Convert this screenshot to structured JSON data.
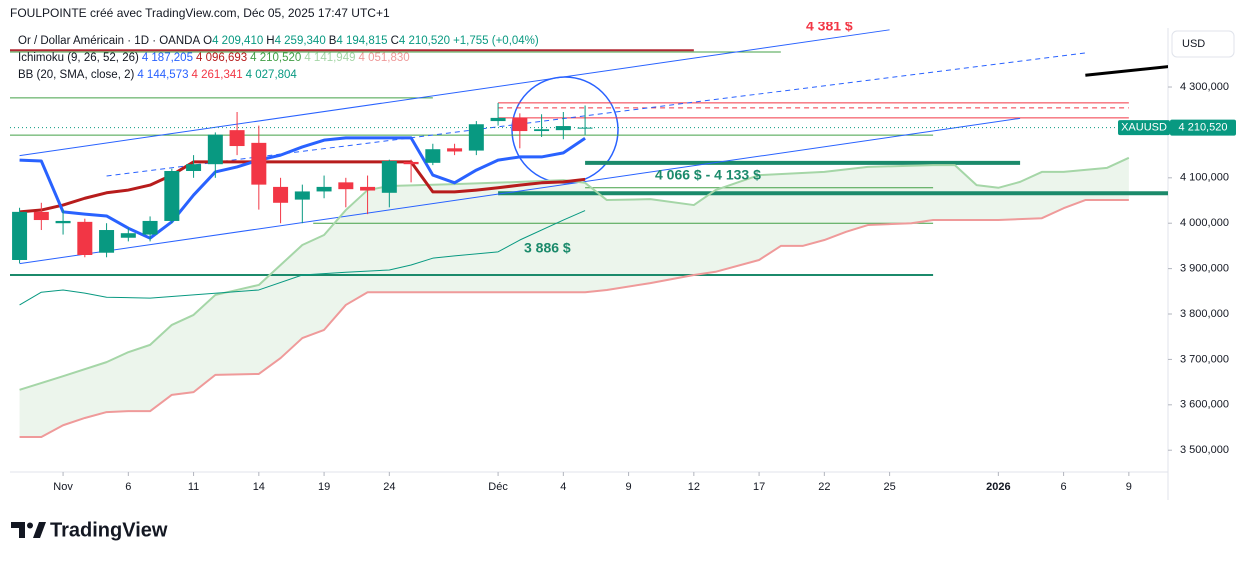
{
  "chart_data": {
    "type": "candlestick",
    "title": "FOULPOINTE créé avec TradingView.com, Déc 05, 2025 17:47 UTC+1",
    "symbol": "Or / Dollar Américain · 1D · OANDA",
    "ohlc_legend": [
      {
        "key": "O",
        "text": "4 209,410"
      },
      {
        "key": "H",
        "text": "4 259,340"
      },
      {
        "key": "B",
        "text": "4 194,815"
      },
      {
        "key": "C",
        "text": "4 210,520"
      }
    ],
    "change": "+1,755 (+0,04%)",
    "indicators": [
      {
        "name": "Ichimoku (9, 26, 52, 26)",
        "values": [
          {
            "text": "4 187,205",
            "color": "#2962ff"
          },
          {
            "text": "4 096,693",
            "color": "#b71c1c"
          },
          {
            "text": "4 210,520",
            "color": "#43a047"
          },
          {
            "text": "4 141,949",
            "color": "#a5d6a7"
          },
          {
            "text": "4 051,830",
            "color": "#ef9a9a"
          }
        ]
      },
      {
        "name": "BB (20, SMA, close, 2)",
        "values": [
          {
            "text": "4 144,573",
            "color": "#2962ff"
          },
          {
            "text": "4 261,341",
            "color": "#f23645"
          },
          {
            "text": "4 027,804",
            "color": "#089981"
          }
        ]
      }
    ],
    "x": [
      -2,
      -1,
      0,
      1,
      2,
      3,
      4,
      5,
      6,
      7,
      8,
      9,
      10,
      11,
      12,
      13,
      14,
      15,
      16,
      17,
      18,
      19,
      20,
      21,
      22,
      23,
      24
    ],
    "open": [
      3919,
      4025,
      4000,
      4003,
      3935,
      3968,
      3975,
      4005,
      4115,
      4130,
      4205,
      4177,
      4080,
      4052,
      4070,
      4090,
      4080,
      4067,
      4135,
      4133,
      4165,
      4160,
      4225,
      4232,
      4203,
      4205,
      4209.41
    ],
    "high": [
      4034,
      4045,
      4030,
      4010,
      4000,
      3990,
      4015,
      4120,
      4150,
      4200,
      4245,
      4215,
      4100,
      4085,
      4105,
      4100,
      4105,
      4140,
      4140,
      4175,
      4175,
      4225,
      4265,
      4242,
      4240,
      4245,
      4259.34
    ],
    "low": [
      3912,
      3985,
      3975,
      3925,
      3925,
      3960,
      3960,
      4000,
      4100,
      4100,
      4150,
      4030,
      4000,
      4000,
      4055,
      4035,
      4020,
      4035,
      4090,
      4128,
      4150,
      4150,
      4215,
      4165,
      4190,
      4185,
      4194.815
    ],
    "close": [
      4025,
      4007,
      4005,
      3930,
      3985,
      3978,
      4005,
      4115,
      4130,
      4195,
      4170,
      4085,
      4045,
      4070,
      4080,
      4075,
      4072,
      4137,
      4130,
      4163,
      4158,
      4218,
      4232,
      4203,
      4207,
      4214,
      4210.52
    ],
    "up_color": "#089981",
    "down_color": "#f23645",
    "series": [
      {
        "color": "#a5d6a7",
        "width": 2,
        "x": [
          -2,
          0,
          2,
          3,
          4,
          5,
          6,
          7,
          8,
          9,
          10,
          11,
          12,
          13,
          14,
          15,
          18,
          21,
          23,
          24,
          25,
          27,
          29,
          30,
          32,
          35,
          37,
          40,
          41,
          42,
          43,
          44,
          45,
          46,
          48,
          49
        ],
        "values": [
          3633,
          3663,
          3694,
          3716,
          3732,
          3776,
          3798,
          3842,
          3853,
          3864,
          3908,
          3952,
          3974,
          4029,
          4073,
          4082,
          4086,
          4091,
          4095,
          4089,
          4051,
          4053,
          4040,
          4073,
          4106,
          4113,
          4124,
          4128,
          4128,
          4084,
          4078,
          4091,
          4113,
          4113,
          4122,
          4144
        ]
      },
      {
        "color": "#ef9a9a",
        "width": 2,
        "x": [
          -2,
          -1,
          0,
          1,
          2,
          3,
          4,
          5,
          6,
          7,
          9,
          10,
          11,
          12,
          13,
          14,
          24,
          25,
          27,
          29,
          30,
          32,
          33,
          34,
          35,
          36,
          37,
          39,
          40,
          43,
          45,
          46,
          47,
          49
        ],
        "values": [
          3529,
          3529,
          3555,
          3571,
          3584,
          3586,
          3586,
          3622,
          3628,
          3666,
          3668,
          3703,
          3747,
          3765,
          3820,
          3848,
          3848,
          3853,
          3868,
          3886,
          3893,
          3919,
          3950,
          3950,
          3963,
          3981,
          3996,
          4000,
          4007,
          4007,
          4011,
          4033,
          4051,
          4051
        ]
      },
      {
        "color": "#089981",
        "width": 1,
        "x": [
          -2,
          -1,
          0,
          1,
          2,
          4,
          9,
          11,
          13,
          15,
          16,
          17,
          18,
          20,
          21,
          23,
          24
        ],
        "values": [
          3820,
          3848,
          3853,
          3846,
          3837,
          3835,
          3853,
          3886,
          3892,
          3897,
          3908,
          3923,
          3928,
          3937,
          3963,
          4007,
          4027.804
        ]
      },
      {
        "color": "#b71c1c",
        "width": 3,
        "x": [
          -2,
          -1,
          0,
          1,
          2,
          3,
          4,
          5,
          6,
          7,
          8,
          9,
          10,
          11,
          12,
          13,
          14,
          15,
          16,
          17,
          18,
          19,
          20,
          21,
          22,
          23,
          24
        ],
        "values": [
          4025,
          4029,
          4040,
          4055,
          4067,
          4073,
          4084,
          4106,
          4135,
          4135,
          4135,
          4135,
          4135,
          4135,
          4135,
          4135,
          4135,
          4135,
          4135,
          4069,
          4069,
          4073,
          4078,
          4084,
          4089,
          4091,
          4096.693
        ]
      },
      {
        "color": "#2962ff",
        "width": 3,
        "x": [
          -2,
          -1,
          0,
          1,
          2,
          3,
          4,
          5,
          6,
          7,
          8,
          9,
          10,
          11,
          12,
          13,
          14,
          15,
          16,
          17,
          18,
          19,
          20,
          21,
          22,
          23,
          24
        ],
        "values": [
          4139,
          4137,
          4025,
          4020,
          4016,
          3989,
          3967,
          4003,
          4062,
          4113,
          4124,
          4139,
          4150,
          4168,
          4183,
          4188,
          4188,
          4188,
          4188,
          4106,
          4089,
          4117,
          4139,
          4146,
          4146,
          4155,
          4187.205
        ]
      }
    ],
    "cloud_color": "#43a047",
    "levels": [
      {
        "value": 4381,
        "color": "#b22833",
        "width": 2,
        "from": -3,
        "to": 29
      },
      {
        "value": 4377,
        "color": "#43a047",
        "width": 1,
        "from": -3,
        "to": 33
      },
      {
        "value": 4276,
        "color": "#43a047",
        "width": 1,
        "from": -3,
        "to": 17
      },
      {
        "value": 4265,
        "color": "#f23645",
        "width": 1,
        "from": 20,
        "to": 49
      },
      {
        "value": 4254,
        "color": "#f23645",
        "width": 1,
        "from": 20,
        "to": 49,
        "dash": true
      },
      {
        "value": 4232,
        "color": "#f23645",
        "width": 1,
        "from": 20,
        "to": 49
      },
      {
        "value": 4194,
        "color": "#43a047",
        "width": 1,
        "from": -3,
        "to": 40
      },
      {
        "value": 4133,
        "color": "#1b8a6b",
        "width": 4,
        "from": 24,
        "to": 44
      },
      {
        "value": 4078,
        "color": "#43a047",
        "width": 1,
        "from": 24,
        "to": 40
      },
      {
        "value": 4066,
        "color": "#1b8a6b",
        "width": 4,
        "from": 20,
        "to": 52
      },
      {
        "value": 4000,
        "color": "#43a047",
        "width": 1,
        "from": 11.5,
        "to": 40
      },
      {
        "value": 3886,
        "color": "#1b8a6b",
        "width": 2,
        "from": -3,
        "to": 40
      }
    ],
    "trendlines": [
      {
        "x": [
          -2,
          38
        ],
        "y": [
          4149,
          4426
        ],
        "color": "#2962ff",
        "width": 1
      },
      {
        "x": [
          -2,
          44
        ],
        "y": [
          3911,
          4231
        ],
        "color": "#2962ff",
        "width": 1
      },
      {
        "x": [
          2,
          47
        ],
        "y": [
          4104,
          4375
        ],
        "color": "#2962ff",
        "width": 1,
        "dash": true
      },
      {
        "x": [
          47,
          51
        ],
        "y": [
          4326,
          4346
        ],
        "color": "#000000",
        "width": 3
      }
    ],
    "annotations": [
      "4 381 $",
      "4 066 $ - 4 133 $",
      "3 886 $"
    ],
    "xlim": [
      -2.44,
      50.8
    ],
    "ylim": [
      3452,
      4430
    ],
    "xticks": [
      {
        "value": 0,
        "label": "Nov"
      },
      {
        "value": 3,
        "label": "6"
      },
      {
        "value": 6,
        "label": "11"
      },
      {
        "value": 9,
        "label": "14"
      },
      {
        "value": 12,
        "label": "19"
      },
      {
        "value": 15,
        "label": "24"
      },
      {
        "value": 20,
        "label": "Déc"
      },
      {
        "value": 23,
        "label": "4"
      },
      {
        "value": 26,
        "label": "9"
      },
      {
        "value": 29,
        "label": "12"
      },
      {
        "value": 32,
        "label": "17"
      },
      {
        "value": 35,
        "label": "22"
      },
      {
        "value": 38,
        "label": "25"
      },
      {
        "value": 43,
        "label": "2026"
      },
      {
        "value": 46,
        "label": "6"
      },
      {
        "value": 49,
        "label": "9"
      }
    ],
    "yticks": [
      {
        "value": 3500,
        "label": "3 500,000"
      },
      {
        "value": 3600,
        "label": "3 600,000"
      },
      {
        "value": 3700,
        "label": "3 700,000"
      },
      {
        "value": 3800,
        "label": "3 800,000"
      },
      {
        "value": 3900,
        "label": "3 900,000"
      },
      {
        "value": 4000,
        "label": "4 000,000"
      },
      {
        "value": 4100,
        "label": "4 100,000"
      },
      {
        "value": 4300,
        "label": "4 300,000"
      }
    ],
    "grid": false,
    "currency": "USD",
    "price_tag": {
      "symbol": "XAUUSD",
      "value": 4210.52,
      "label": "4 210,520"
    },
    "brand": "TradingView"
  }
}
